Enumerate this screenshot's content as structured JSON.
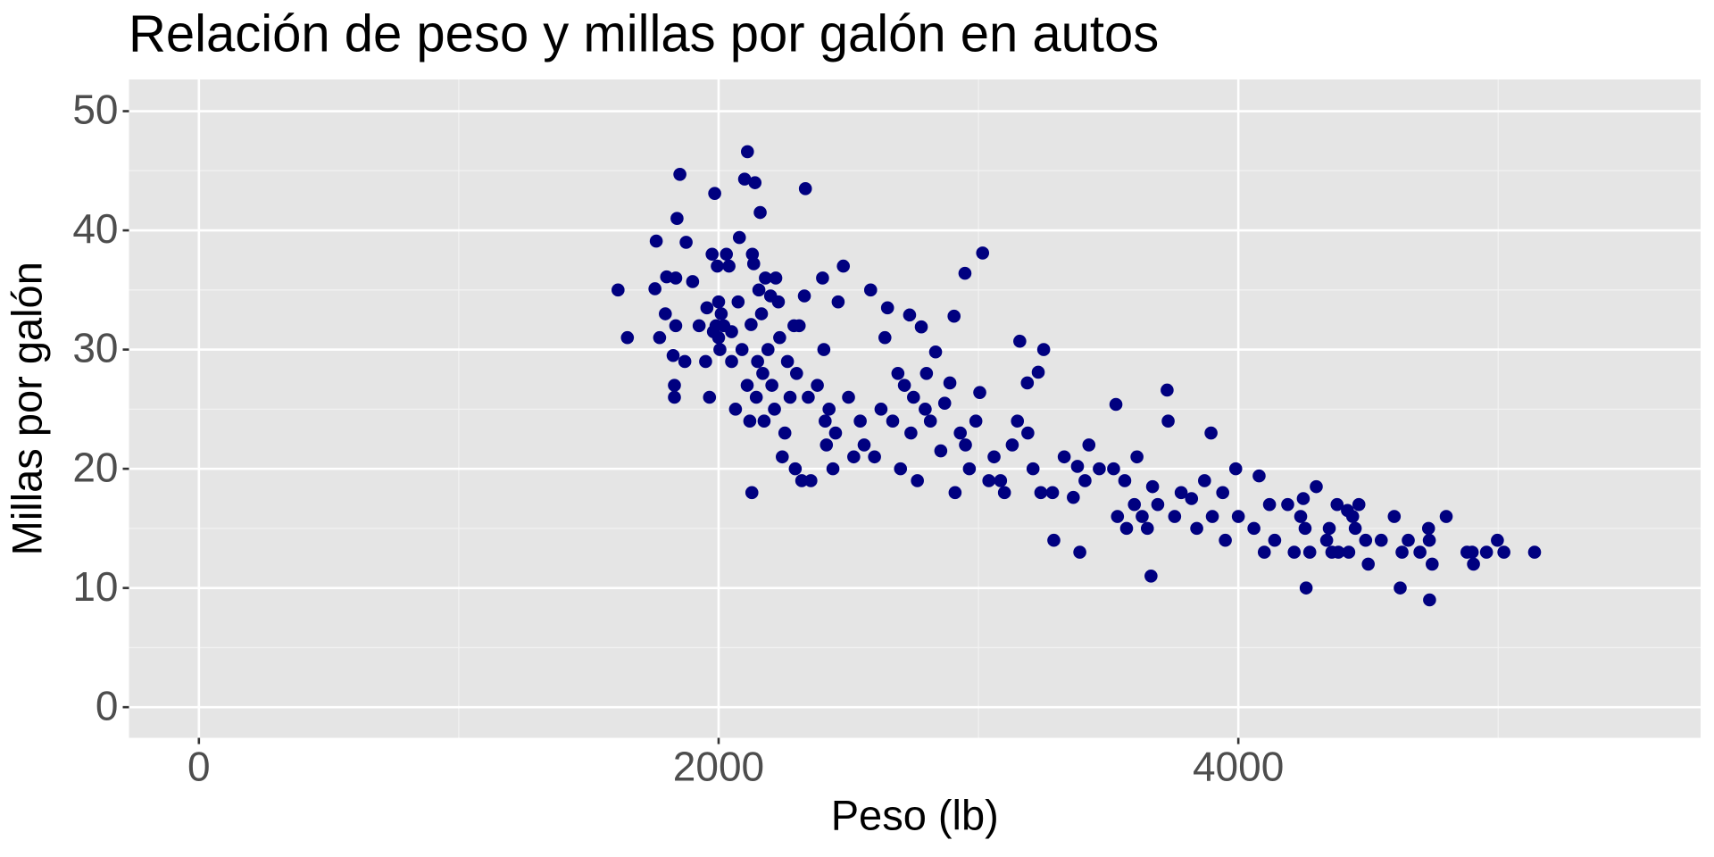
{
  "chart_data": {
    "type": "scatter",
    "title": "Relación de peso y millas por galón en autos",
    "x_label": "Peso (lb)",
    "y_label": "Millas por galón",
    "color": "#000080",
    "grid": true,
    "xlim": [
      -269,
      5779
    ],
    "ylim": [
      -2.57,
      52.66
    ],
    "xticks": [
      0,
      2000,
      4000
    ],
    "yticks": [
      0,
      10,
      20,
      30,
      40,
      50
    ],
    "x_minor_grid": [
      1000,
      3000,
      5000
    ],
    "y_minor_grid": [
      5,
      15,
      25,
      35,
      45
    ],
    "x": [
      1613,
      1649,
      1760,
      1755,
      1773,
      1795,
      1800,
      1825,
      1830,
      1830,
      1835,
      1835,
      1840,
      1851,
      1870,
      1875,
      1900,
      1925,
      1950,
      1955,
      1965,
      1985,
      1975,
      1980,
      1990,
      1995,
      2000,
      2000,
      2005,
      2010,
      2020,
      2030,
      2040,
      2050,
      2050,
      2065,
      2075,
      2080,
      2090,
      2100,
      2110,
      2111,
      2120,
      2125,
      2128,
      2130,
      2135,
      2140,
      2145,
      2150,
      2155,
      2160,
      2165,
      2170,
      2175,
      2180,
      2190,
      2200,
      2205,
      2215,
      2220,
      2230,
      2235,
      2245,
      2255,
      2265,
      2275,
      2290,
      2295,
      2300,
      2310,
      2320,
      2330,
      2334,
      2345,
      2355,
      2380,
      2400,
      2405,
      2410,
      2415,
      2425,
      2440,
      2450,
      2460,
      2480,
      2500,
      2520,
      2545,
      2560,
      2585,
      2600,
      2625,
      2640,
      2650,
      2670,
      2690,
      2700,
      2715,
      2735,
      2740,
      2750,
      2765,
      2780,
      2795,
      2800,
      2815,
      2835,
      2855,
      2870,
      2890,
      2910,
      2930,
      2948,
      2950,
      2965,
      2990,
      3016,
      2906,
      3005,
      3040,
      3060,
      3085,
      3100,
      3130,
      3150,
      3159,
      3190,
      3210,
      3240,
      3251,
      3285,
      3290,
      3330,
      3365,
      3381,
      3390,
      3410,
      3425,
      3188,
      3465,
      3230,
      3520,
      3535,
      3563,
      3570,
      3600,
      3610,
      3630,
      3650,
      3670,
      3690,
      3730,
      3755,
      3780,
      3820,
      3529,
      3840,
      3870,
      3900,
      3940,
      3950,
      3726,
      3895,
      3664,
      3990,
      4000,
      4060,
      4080,
      4100,
      4140,
      4190,
      4215,
      4240,
      4257,
      4275,
      4300,
      4340,
      4360,
      4385,
      4425,
      4440,
      4464,
      4490,
      4500,
      4550,
      4600,
      4630,
      4654,
      4699,
      4732,
      4735,
      4746,
      4800,
      4880,
      4900,
      4955,
      4997,
      5022,
      4261,
      4736,
      4623,
      4905,
      5140,
      4380,
      4420,
      4250,
      4120,
      4350,
      4450
    ],
    "values": [
      35,
      31,
      39.1,
      35.1,
      31,
      33,
      36.1,
      29.5,
      26,
      27,
      32,
      36,
      41,
      44.7,
      29,
      39,
      35.7,
      32,
      29,
      33.5,
      26,
      43.1,
      38,
      31.5,
      32,
      37,
      31,
      34,
      30,
      33,
      32,
      38,
      37,
      29,
      31.5,
      25,
      34,
      39.4,
      30,
      44.3,
      27,
      46.6,
      24,
      32.1,
      18,
      38,
      37.2,
      44,
      26,
      29,
      35,
      41.5,
      33,
      28,
      24,
      36,
      30,
      34.5,
      27,
      25,
      36,
      34,
      31,
      21,
      23,
      29,
      26,
      32,
      20,
      28,
      32,
      19,
      34.5,
      43.5,
      26,
      19,
      27,
      36,
      30,
      24,
      22,
      25,
      20,
      23,
      34,
      37,
      26,
      21,
      24,
      22,
      35,
      21,
      25,
      31,
      33.5,
      24,
      28,
      20,
      27,
      32.9,
      23,
      26,
      19,
      31.9,
      25,
      28,
      24,
      29.8,
      21.5,
      25.5,
      27.2,
      18,
      23,
      36.4,
      22,
      20,
      24,
      38.1,
      32.8,
      26.4,
      19,
      21,
      19,
      18,
      22,
      24,
      30.7,
      23,
      20,
      18,
      30,
      18,
      14,
      21,
      17.6,
      20.2,
      13,
      19,
      22,
      27.2,
      20,
      28.1,
      20,
      16,
      19,
      15,
      17,
      21,
      16,
      15,
      18.5,
      17,
      24,
      16,
      18,
      17.5,
      25.4,
      15,
      19,
      16,
      18,
      14,
      26.6,
      23,
      11,
      20,
      16,
      15,
      19.4,
      13,
      14,
      17,
      13,
      16,
      15,
      13,
      18.5,
      14,
      13,
      13,
      13,
      16,
      17,
      14,
      12,
      14,
      16,
      13,
      14,
      13,
      15,
      14,
      12,
      16,
      13,
      13,
      13,
      14,
      13,
      10,
      9,
      10,
      12,
      13,
      17,
      16.5,
      17.5,
      17,
      15,
      15
    ]
  }
}
